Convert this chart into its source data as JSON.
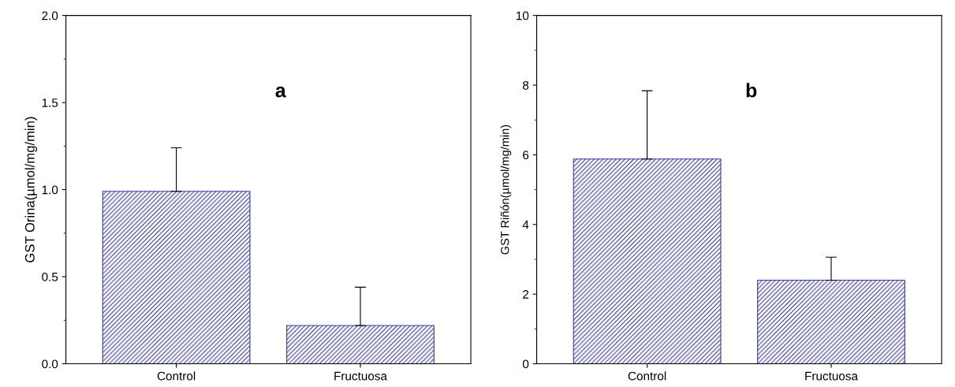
{
  "chart_data": [
    {
      "type": "bar",
      "ylabel": "GST Orina(µmol/mg/min)",
      "categories": [
        "Control",
        "Fructuosa"
      ],
      "values": [
        0.99,
        0.22
      ],
      "errors": [
        [
          0.99,
          1.24
        ],
        [
          0.22,
          0.44
        ]
      ],
      "color": "#3a3aa0",
      "ylim": [
        0,
        2.0
      ],
      "yticks": [
        {
          "value": 0,
          "label": "0.0"
        },
        0.5,
        {
          "value": 1,
          "label": "1.0"
        },
        1.5,
        {
          "value": 2,
          "label": "2.0"
        }
      ],
      "annotations": [
        "a"
      ],
      "grid": false
    },
    {
      "type": "bar",
      "ylabel": "GST Riñón(µmol/mg/min)",
      "categories": [
        "Control",
        "Fructuosa"
      ],
      "values": [
        5.88,
        2.4
      ],
      "errors": [
        [
          5.88,
          7.84
        ],
        [
          2.4,
          3.06
        ]
      ],
      "color": "#3a3aa0",
      "ylim": [
        0,
        10
      ],
      "yticks": [
        0,
        2,
        4,
        6,
        8,
        10
      ],
      "annotations": [
        "b"
      ],
      "grid": false
    }
  ]
}
